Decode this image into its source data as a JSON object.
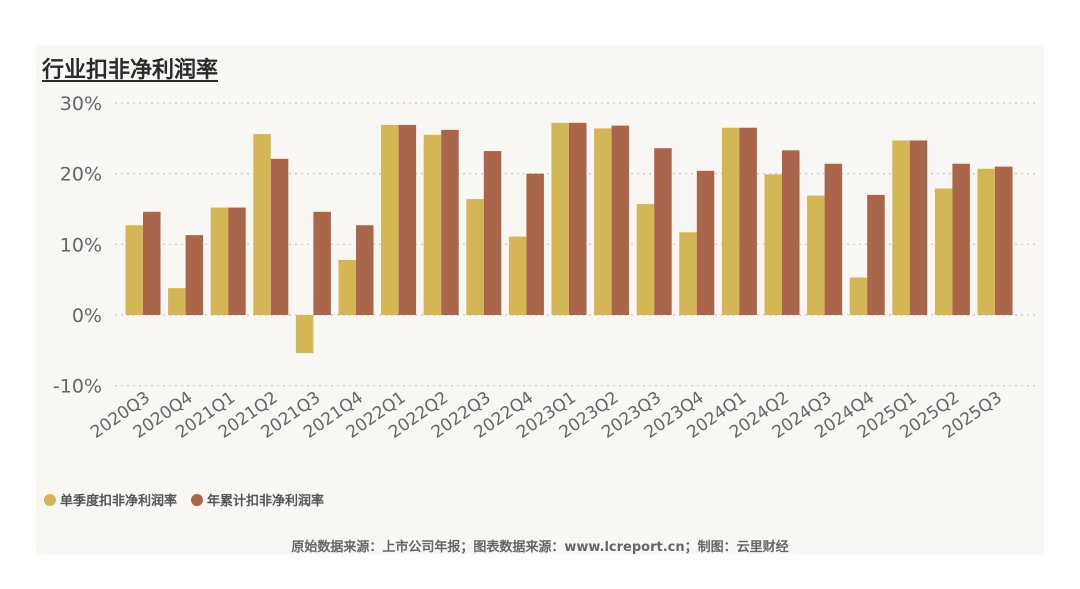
{
  "chart_data": {
    "type": "bar",
    "title": "行业扣非净利润率",
    "categories": [
      "2020Q3",
      "2020Q4",
      "2021Q1",
      "2021Q2",
      "2021Q3",
      "2021Q4",
      "2022Q1",
      "2022Q2",
      "2022Q3",
      "2022Q4",
      "2023Q1",
      "2023Q2",
      "2023Q3",
      "2023Q4",
      "2024Q1",
      "2024Q2",
      "2024Q3",
      "2024Q4",
      "2025Q1",
      "2025Q2",
      "2025Q3"
    ],
    "series": [
      {
        "name": "单季度扣非净利润率",
        "color": "#d4b655",
        "values": [
          12.7,
          3.8,
          15.2,
          25.6,
          -5.4,
          7.8,
          26.9,
          25.5,
          16.4,
          11.1,
          27.2,
          26.4,
          15.7,
          11.7,
          26.5,
          19.9,
          16.9,
          5.3,
          24.7,
          17.9,
          20.7
        ]
      },
      {
        "name": "年累计扣非净利润率",
        "color": "#a9664a",
        "values": [
          14.6,
          11.3,
          15.2,
          22.1,
          14.6,
          12.7,
          26.9,
          26.2,
          23.2,
          20.0,
          27.2,
          26.8,
          23.6,
          20.4,
          26.5,
          23.3,
          21.4,
          17.0,
          24.7,
          21.4,
          21.0
        ]
      }
    ],
    "yticks": [
      "30%",
      "20%",
      "10%",
      "0%",
      "-10%"
    ],
    "ylim": [
      -10,
      30
    ],
    "grid": true,
    "legend": "bottom-left"
  },
  "footer": {
    "source": "原始数据来源：上市公司年报；图表数据来源：www.lcreport.cn；制图：云里财经"
  }
}
